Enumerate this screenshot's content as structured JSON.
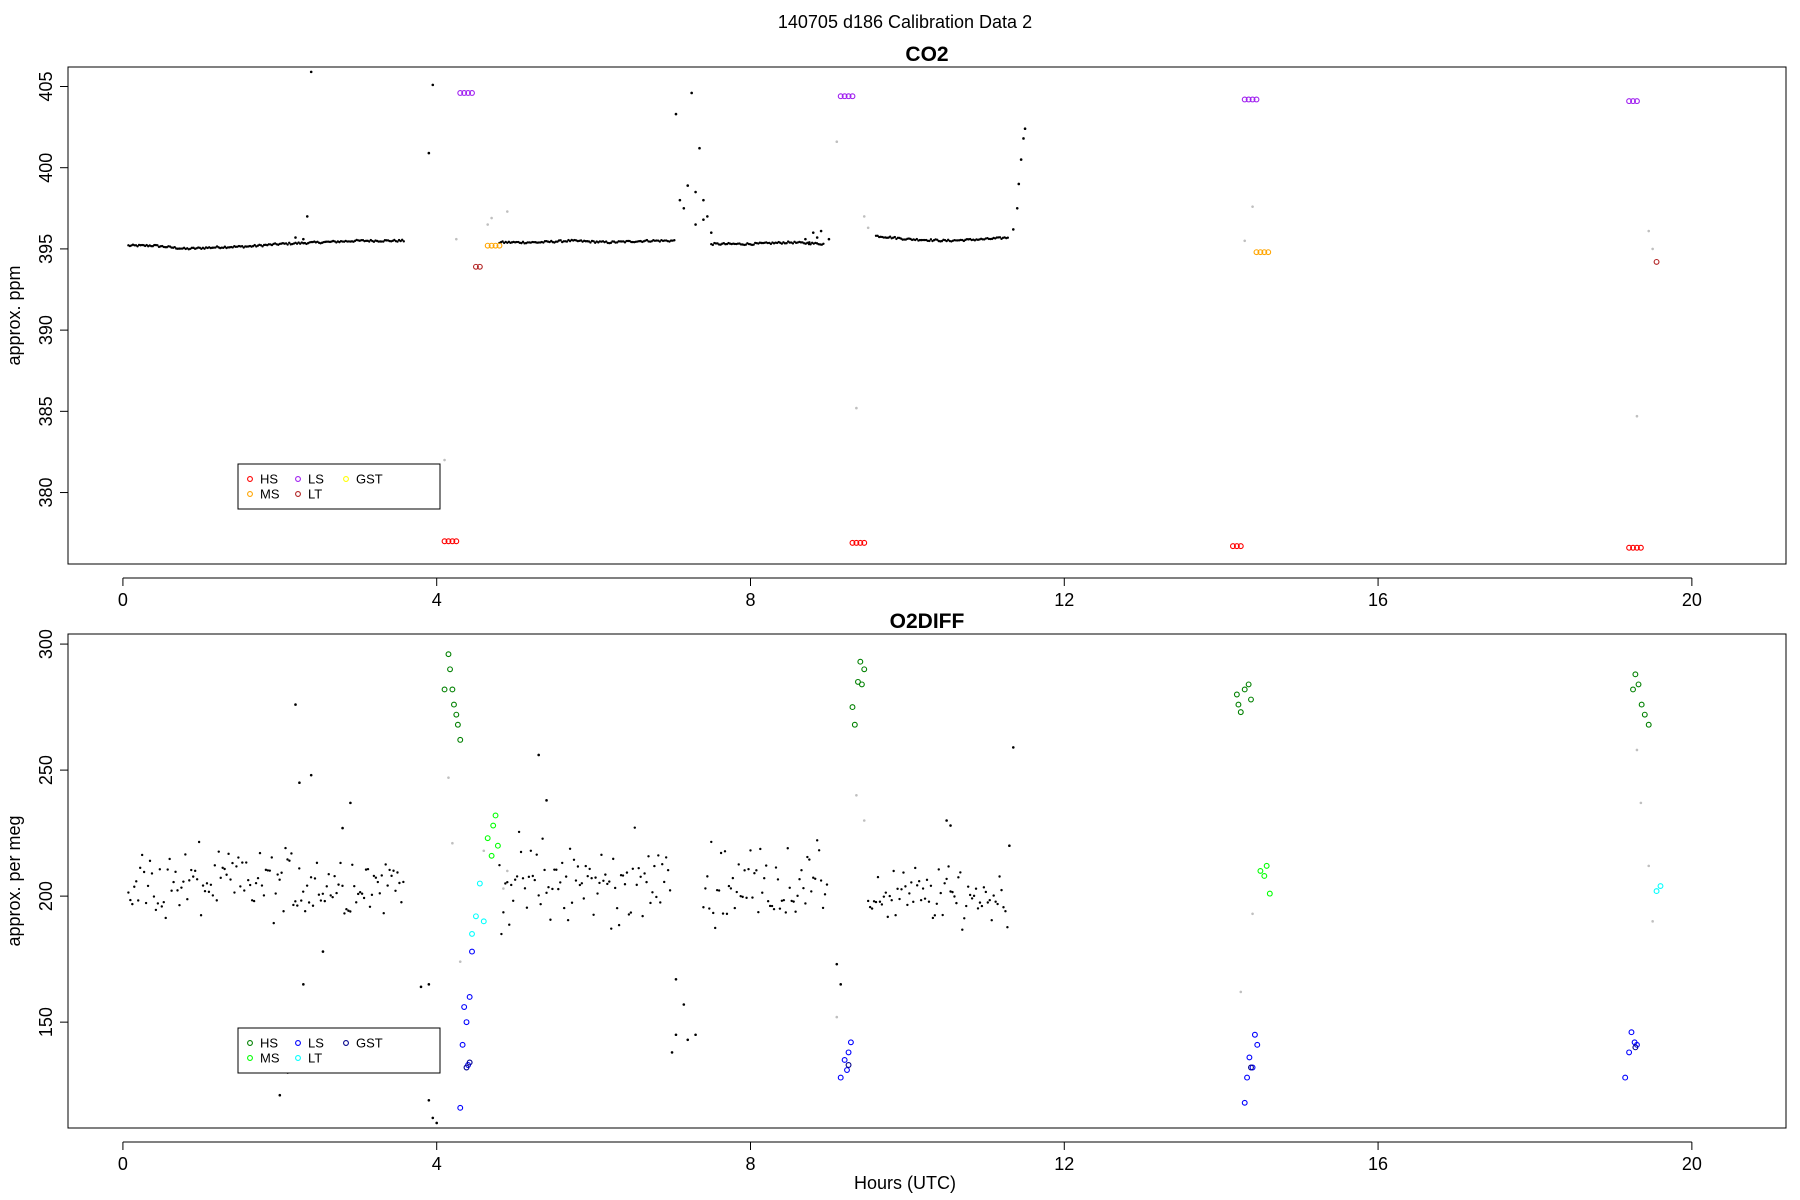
{
  "figure_title": "140705   d186   Calibration Data 2",
  "xlabel": "Hours (UTC)",
  "chart_data": [
    {
      "type": "scatter",
      "title": "CO2",
      "xlabel": "",
      "ylabel": "approx. ppm",
      "xlim": [
        -0.7,
        21.2
      ],
      "ylim": [
        375.6,
        406.2
      ],
      "x_ticks": [
        0,
        4,
        8,
        12,
        16,
        20
      ],
      "y_ticks": [
        380,
        385,
        390,
        395,
        400,
        405
      ],
      "legend": {
        "placement": "bottom-left",
        "entries": [
          {
            "label": "HS",
            "color": "#ff0000"
          },
          {
            "label": "MS",
            "color": "#ffa500"
          },
          {
            "label": "LS",
            "color": "#a020f0"
          },
          {
            "label": "LT",
            "color": "#b22222"
          },
          {
            "label": "GST",
            "color": "#ffff00"
          }
        ]
      },
      "background_series": [
        {
          "name": "sample",
          "color": "#000000",
          "segments": [
            [
              [
                0.07,
                395.2
              ],
              [
                0.4,
                395.2
              ],
              [
                0.8,
                395.0
              ],
              [
                1.2,
                395.1
              ],
              [
                1.6,
                395.15
              ],
              [
                2.0,
                395.3
              ],
              [
                2.5,
                395.4
              ],
              [
                3.0,
                395.5
              ],
              [
                3.6,
                395.5
              ]
            ],
            [
              [
                4.8,
                395.4
              ],
              [
                5.3,
                395.4
              ],
              [
                5.7,
                395.5
              ],
              [
                6.2,
                395.4
              ],
              [
                6.7,
                395.5
              ],
              [
                7.05,
                395.5
              ]
            ],
            [
              [
                7.5,
                395.3
              ],
              [
                8.0,
                395.3
              ],
              [
                8.5,
                395.4
              ],
              [
                8.95,
                395.3
              ]
            ],
            [
              [
                9.6,
                395.8
              ],
              [
                10.0,
                395.6
              ],
              [
                10.5,
                395.5
              ],
              [
                11.0,
                395.6
              ],
              [
                11.3,
                395.7
              ]
            ]
          ]
        },
        {
          "name": "sample",
          "color": "#000000",
          "points": [
            [
              2.2,
              395.7
            ],
            [
              2.3,
              395.6
            ],
            [
              2.35,
              397.0
            ],
            [
              2.4,
              405.9
            ],
            [
              3.9,
              400.9
            ],
            [
              3.95,
              405.1
            ],
            [
              7.05,
              403.3
            ],
            [
              7.1,
              398.0
            ],
            [
              7.15,
              397.5
            ],
            [
              7.2,
              398.9
            ],
            [
              7.25,
              404.6
            ],
            [
              7.3,
              398.5
            ],
            [
              7.35,
              401.2
            ],
            [
              7.4,
              398.0
            ],
            [
              7.45,
              397.0
            ],
            [
              7.5,
              396.0
            ],
            [
              7.3,
              396.5
            ],
            [
              7.4,
              396.8
            ],
            [
              8.7,
              395.6
            ],
            [
              8.75,
              395.4
            ],
            [
              8.8,
              396.0
            ],
            [
              8.85,
              395.7
            ],
            [
              8.9,
              396.1
            ],
            [
              9.0,
              395.6
            ],
            [
              11.35,
              396.2
            ],
            [
              11.4,
              397.5
            ],
            [
              11.42,
              399.0
            ],
            [
              11.45,
              400.5
            ],
            [
              11.48,
              401.8
            ],
            [
              11.5,
              402.4
            ]
          ]
        },
        {
          "name": "transition",
          "color": "#bfbfbf",
          "points": [
            [
              4.1,
              382.0
            ],
            [
              4.25,
              395.6
            ],
            [
              4.65,
              396.5
            ],
            [
              4.7,
              396.9
            ],
            [
              4.9,
              397.3
            ],
            [
              9.1,
              401.6
            ],
            [
              9.35,
              385.2
            ],
            [
              9.45,
              397.0
            ],
            [
              9.5,
              396.3
            ],
            [
              14.3,
              395.5
            ],
            [
              14.4,
              397.6
            ],
            [
              19.3,
              384.7
            ],
            [
              19.45,
              396.1
            ],
            [
              19.5,
              395.0
            ]
          ]
        }
      ],
      "series": [
        {
          "name": "HS",
          "color": "#ff0000",
          "points": [
            [
              4.1,
              377.0
            ],
            [
              4.15,
              377.0
            ],
            [
              4.2,
              377.0
            ],
            [
              4.25,
              377.0
            ],
            [
              9.3,
              376.9
            ],
            [
              9.35,
              376.9
            ],
            [
              9.4,
              376.9
            ],
            [
              9.45,
              376.9
            ],
            [
              14.15,
              376.7
            ],
            [
              14.2,
              376.7
            ],
            [
              14.25,
              376.7
            ],
            [
              19.2,
              376.6
            ],
            [
              19.25,
              376.6
            ],
            [
              19.3,
              376.6
            ],
            [
              19.35,
              376.6
            ]
          ]
        },
        {
          "name": "MS",
          "color": "#ffa500",
          "points": [
            [
              4.65,
              395.2
            ],
            [
              4.7,
              395.2
            ],
            [
              4.75,
              395.2
            ],
            [
              4.8,
              395.2
            ],
            [
              14.45,
              394.8
            ],
            [
              14.5,
              394.8
            ],
            [
              14.55,
              394.8
            ],
            [
              14.6,
              394.8
            ]
          ]
        },
        {
          "name": "LS",
          "color": "#a020f0",
          "points": [
            [
              4.3,
              404.6
            ],
            [
              4.35,
              404.6
            ],
            [
              4.4,
              404.6
            ],
            [
              4.45,
              404.6
            ],
            [
              9.15,
              404.4
            ],
            [
              9.2,
              404.4
            ],
            [
              9.25,
              404.4
            ],
            [
              9.3,
              404.4
            ],
            [
              14.3,
              404.2
            ],
            [
              14.35,
              404.2
            ],
            [
              14.4,
              404.2
            ],
            [
              14.45,
              404.2
            ],
            [
              19.2,
              404.1
            ],
            [
              19.25,
              404.1
            ],
            [
              19.3,
              404.1
            ]
          ]
        },
        {
          "name": "LT",
          "color": "#b22222",
          "points": [
            [
              4.5,
              393.9
            ],
            [
              4.55,
              393.9
            ],
            [
              19.55,
              394.2
            ]
          ]
        },
        {
          "name": "GST",
          "color": "#ffff00",
          "points": []
        }
      ]
    },
    {
      "type": "scatter",
      "title": "O2DIFF",
      "xlabel": "Hours (UTC)",
      "ylabel": "approx. per meg",
      "xlim": [
        -0.7,
        21.2
      ],
      "ylim": [
        108,
        304
      ],
      "x_ticks": [
        0,
        4,
        8,
        12,
        16,
        20
      ],
      "y_ticks": [
        150,
        200,
        250,
        300
      ],
      "legend": {
        "placement": "bottom-left",
        "entries": [
          {
            "label": "HS",
            "color": "#008000"
          },
          {
            "label": "MS",
            "color": "#00ff00"
          },
          {
            "label": "LS",
            "color": "#0000ff"
          },
          {
            "label": "LT",
            "color": "#00ffff"
          },
          {
            "label": "GST",
            "color": "#00008b"
          }
        ]
      },
      "background_series": [
        {
          "name": "sample",
          "color": "#000000",
          "bands": [
            {
              "x": [
                0.07,
                3.6
              ],
              "center": 205,
              "spread": 11
            },
            {
              "x": [
                4.8,
                7.0
              ],
              "center": 205,
              "spread": 13
            },
            {
              "x": [
                7.4,
                9.0
              ],
              "center": 205,
              "spread": 11
            },
            {
              "x": [
                9.5,
                11.3
              ],
              "center": 200,
              "spread": 9
            }
          ]
        },
        {
          "name": "sample",
          "color": "#000000",
          "points": [
            [
              2.2,
              276
            ],
            [
              2.25,
              245
            ],
            [
              2.4,
              248
            ],
            [
              2.3,
              165
            ],
            [
              2.1,
              130
            ],
            [
              2.0,
              121
            ],
            [
              2.55,
              178
            ],
            [
              2.8,
              227
            ],
            [
              2.9,
              237
            ],
            [
              3.8,
              164
            ],
            [
              3.95,
              137
            ],
            [
              3.9,
              165
            ],
            [
              3.9,
              119
            ],
            [
              3.95,
              112
            ],
            [
              4.0,
              110
            ],
            [
              5.3,
              256
            ],
            [
              5.4,
              238
            ],
            [
              7.05,
              167
            ],
            [
              7.0,
              138
            ],
            [
              7.05,
              145
            ],
            [
              7.15,
              157
            ],
            [
              7.2,
              143
            ],
            [
              7.3,
              145
            ],
            [
              9.1,
              173
            ],
            [
              9.15,
              165
            ],
            [
              11.35,
              259
            ],
            [
              11.3,
              220
            ],
            [
              10.5,
              230
            ],
            [
              10.55,
              228
            ]
          ]
        },
        {
          "name": "transition",
          "color": "#bfbfbf",
          "points": [
            [
              4.15,
              247
            ],
            [
              4.2,
              221
            ],
            [
              4.3,
              174
            ],
            [
              4.6,
              218
            ],
            [
              4.85,
              203
            ],
            [
              4.9,
              210
            ],
            [
              9.1,
              152
            ],
            [
              9.35,
              240
            ],
            [
              9.45,
              230
            ],
            [
              14.25,
              162
            ],
            [
              14.4,
              193
            ],
            [
              19.3,
              258
            ],
            [
              19.35,
              237
            ],
            [
              19.45,
              212
            ],
            [
              19.5,
              190
            ]
          ]
        }
      ],
      "series": [
        {
          "name": "HS",
          "color": "#008000",
          "points": [
            [
              4.1,
              282
            ],
            [
              4.15,
              296
            ],
            [
              4.17,
              290
            ],
            [
              4.2,
              282
            ],
            [
              4.22,
              276
            ],
            [
              4.25,
              272
            ],
            [
              4.27,
              268
            ],
            [
              4.3,
              262
            ],
            [
              9.3,
              275
            ],
            [
              9.33,
              268
            ],
            [
              9.37,
              285
            ],
            [
              9.4,
              293
            ],
            [
              9.45,
              290
            ],
            [
              9.42,
              284
            ],
            [
              14.2,
              280
            ],
            [
              14.22,
              276
            ],
            [
              14.25,
              273
            ],
            [
              14.3,
              282
            ],
            [
              14.35,
              284
            ],
            [
              14.38,
              278
            ],
            [
              19.25,
              282
            ],
            [
              19.28,
              288
            ],
            [
              19.32,
              284
            ],
            [
              19.36,
              276
            ],
            [
              19.4,
              272
            ],
            [
              19.45,
              268
            ]
          ]
        },
        {
          "name": "MS",
          "color": "#00ff00",
          "points": [
            [
              4.65,
              223
            ],
            [
              4.7,
              216
            ],
            [
              4.72,
              228
            ],
            [
              4.75,
              232
            ],
            [
              4.78,
              220
            ],
            [
              14.5,
              210
            ],
            [
              14.55,
              208
            ],
            [
              14.58,
              212
            ],
            [
              14.62,
              201
            ]
          ]
        },
        {
          "name": "LS",
          "color": "#0000ff",
          "points": [
            [
              4.3,
              116
            ],
            [
              4.33,
              141
            ],
            [
              4.35,
              156
            ],
            [
              4.38,
              150
            ],
            [
              4.4,
              133
            ],
            [
              4.42,
              160
            ],
            [
              4.45,
              178
            ],
            [
              9.15,
              128
            ],
            [
              9.2,
              135
            ],
            [
              9.23,
              131
            ],
            [
              9.25,
              138
            ],
            [
              9.28,
              142
            ],
            [
              14.3,
              118
            ],
            [
              14.33,
              128
            ],
            [
              14.36,
              136
            ],
            [
              14.4,
              132
            ],
            [
              14.43,
              145
            ],
            [
              14.46,
              141
            ],
            [
              19.15,
              128
            ],
            [
              19.2,
              138
            ],
            [
              19.23,
              146
            ],
            [
              19.27,
              142
            ],
            [
              19.3,
              141
            ]
          ]
        },
        {
          "name": "LT",
          "color": "#00ffff",
          "points": [
            [
              4.45,
              185
            ],
            [
              4.5,
              192
            ],
            [
              4.55,
              205
            ],
            [
              4.6,
              190
            ],
            [
              19.55,
              202
            ],
            [
              19.6,
              204
            ]
          ]
        },
        {
          "name": "GST",
          "color": "#00008b",
          "points": [
            [
              4.38,
              132
            ],
            [
              4.42,
              134
            ],
            [
              9.25,
              133
            ],
            [
              14.38,
              132
            ],
            [
              19.28,
              140
            ]
          ]
        }
      ]
    }
  ]
}
